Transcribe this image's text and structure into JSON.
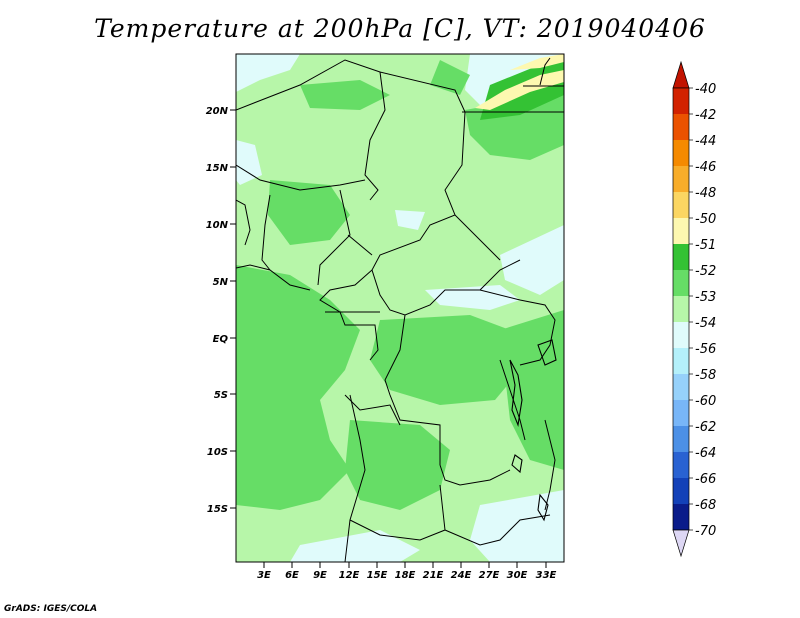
{
  "title": "Temperature at 200hPa [C], VT: 2019040406",
  "credit": "GrADS: IGES/COLA",
  "lat_labels": [
    "20N",
    "15N",
    "10N",
    "5N",
    "EQ",
    "5S",
    "10S",
    "15S"
  ],
  "lon_labels": [
    "3E",
    "6E",
    "9E",
    "12E",
    "15E",
    "18E",
    "21E",
    "24E",
    "27E",
    "30E",
    "33E"
  ],
  "colorbar": {
    "labels": [
      "-40",
      "-42",
      "-44",
      "-46",
      "-48",
      "-50",
      "-51",
      "-52",
      "-53",
      "-54",
      "-56",
      "-58",
      "-60",
      "-62",
      "-64",
      "-66",
      "-68",
      "-70"
    ],
    "colors": [
      "#d22200",
      "#eb5200",
      "#f58a00",
      "#f8ad2a",
      "#fbd662",
      "#fdf8b0",
      "#34c234",
      "#66dd66",
      "#b7f6a9",
      "#e0fbfb",
      "#b4f0fa",
      "#96d1fa",
      "#78b6f8",
      "#4c90e6",
      "#2962d2",
      "#1341b8",
      "#0a1c8a",
      "#ddd7f4"
    ],
    "top_arrow_color": "#c21300",
    "bottom_arrow_color": "#ddd7f4"
  }
}
